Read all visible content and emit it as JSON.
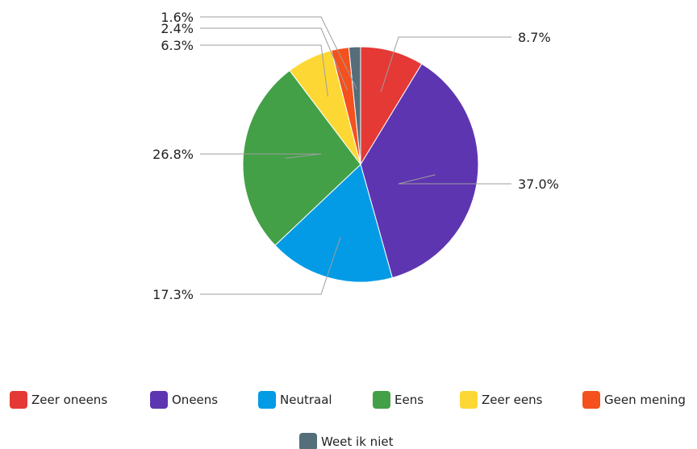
{
  "chart_data": {
    "type": "pie",
    "categories": [
      "Zeer oneens",
      "Oneens",
      "Neutraal",
      "Eens",
      "Zeer eens",
      "Geen mening",
      "Weet ik niet"
    ],
    "values": [
      8.7,
      37.0,
      17.3,
      26.8,
      6.3,
      2.4,
      1.6
    ],
    "labels": [
      "8.7%",
      "37.0%",
      "17.3%",
      "26.8%",
      "6.3%",
      "2.4%",
      "1.6%"
    ],
    "colors": [
      "#e53935",
      "#5e35b1",
      "#039be5",
      "#43a047",
      "#fdd835",
      "#f4511e",
      "#546e7a"
    ],
    "legend_position": "bottom"
  }
}
